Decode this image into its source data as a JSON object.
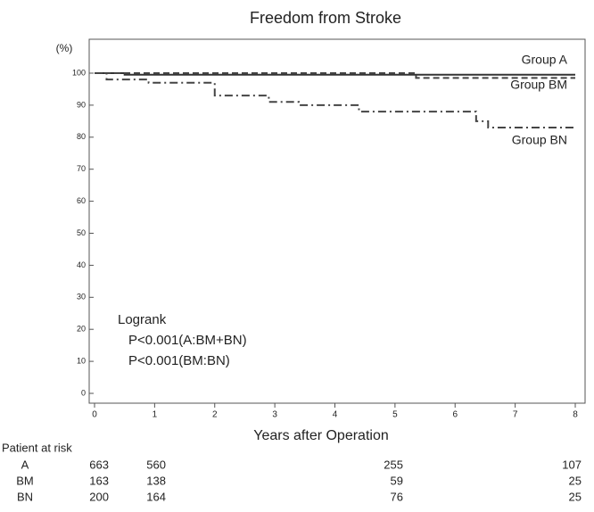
{
  "chart_data": {
    "type": "line",
    "title": "Freedom from Stroke",
    "y_label": "(%)",
    "x_label": "Years after Operation",
    "xlim": [
      0,
      8
    ],
    "xticks": [
      0,
      1,
      2,
      3,
      4,
      5,
      6,
      7,
      8
    ],
    "ylim": [
      0,
      100
    ],
    "yticks": [
      0,
      10,
      20,
      30,
      40,
      50,
      60,
      70,
      80,
      90,
      100
    ],
    "series": [
      {
        "name": "Group A",
        "color": "#333333",
        "dash": "none",
        "x": [
          0,
          0.5,
          0.5,
          8
        ],
        "values": [
          100,
          100,
          99.5,
          99.5
        ]
      },
      {
        "name": "Group BM",
        "color": "#444444",
        "dash": "7 4",
        "x": [
          0,
          5.35,
          5.35,
          8
        ],
        "values": [
          100,
          100,
          98.5,
          98.5
        ]
      },
      {
        "name": "Group BN",
        "color": "#444444",
        "dash": "9 4 2 4",
        "x": [
          0,
          0.2,
          0.2,
          0.9,
          0.9,
          2.0,
          2.0,
          2.9,
          2.9,
          3.4,
          3.4,
          4.4,
          4.4,
          6.35,
          6.35,
          6.55,
          6.55,
          8
        ],
        "values": [
          100,
          100,
          98,
          98,
          97,
          97,
          93,
          93,
          91,
          91,
          90,
          90,
          88,
          88,
          85,
          85,
          83,
          83
        ]
      }
    ],
    "annotations": [
      "Logrank",
      "P<0.001(A:BM+BN)",
      "P<0.001(BM:BN)"
    ],
    "risk_table": {
      "title": "Patient at risk",
      "rows": [
        {
          "name": "A",
          "values": [
            663,
            560,
            255,
            107
          ]
        },
        {
          "name": "BM",
          "values": [
            163,
            138,
            59,
            25
          ]
        },
        {
          "name": "BN",
          "values": [
            200,
            164,
            76,
            25
          ]
        }
      ]
    }
  }
}
